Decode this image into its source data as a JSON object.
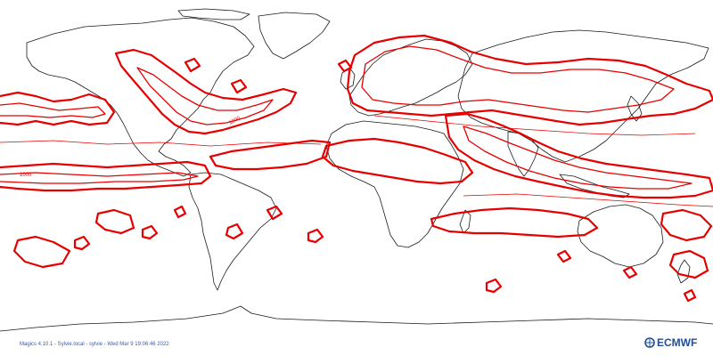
{
  "map": {
    "projection": "cylindrical",
    "contour_color": "#e60000",
    "coastline_color": "#1a1a1a",
    "contour_labels": [
      "1000",
      "1000"
    ]
  },
  "footer": {
    "text": "Magics 4.10.1 - Sylvie.local - sylvie - Wed Mar  9 19:06:46 2022"
  },
  "logo": {
    "text": "ECMWF",
    "color": "#1f4e96"
  }
}
